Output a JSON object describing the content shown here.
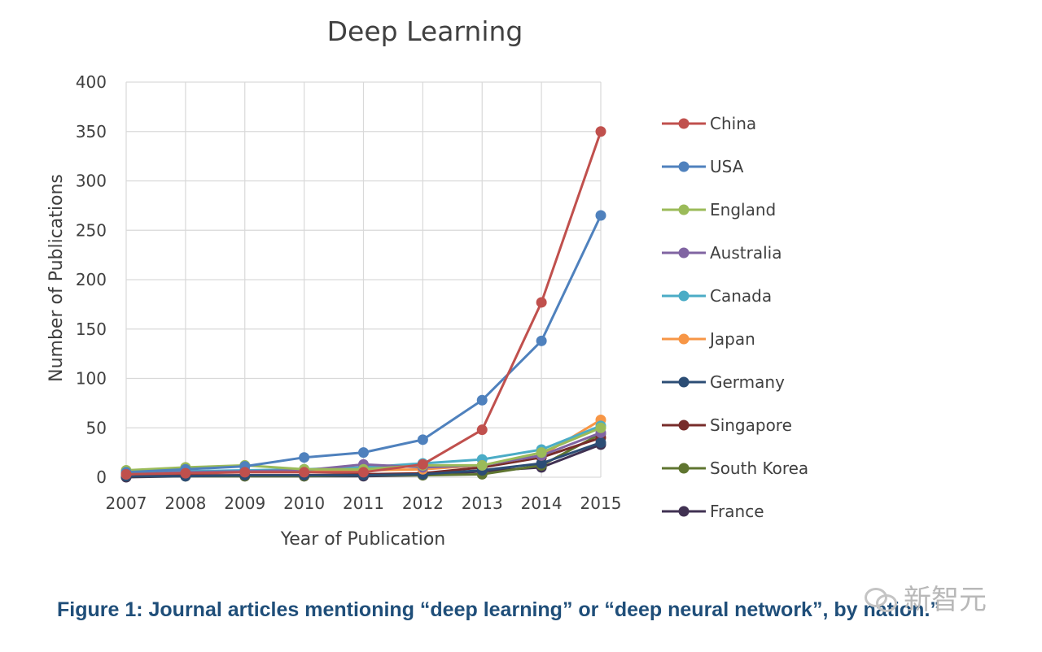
{
  "chart_data": {
    "type": "line",
    "title": "Deep Learning",
    "xlabel": "Year of Publication",
    "ylabel": "Number of Publications",
    "categories": [
      "2007",
      "2008",
      "2009",
      "2010",
      "2011",
      "2012",
      "2013",
      "2014",
      "2015"
    ],
    "ylim": [
      0,
      400
    ],
    "yticks": [
      "0",
      "50",
      "100",
      "150",
      "200",
      "250",
      "300",
      "350",
      "400"
    ],
    "grid": true,
    "legend_position": "right",
    "series": [
      {
        "name": "China",
        "color": "#c0504d",
        "values": [
          3,
          4,
          5,
          5,
          5,
          13,
          48,
          177,
          350
        ]
      },
      {
        "name": "USA",
        "color": "#4f81bd",
        "values": [
          5,
          8,
          11,
          20,
          25,
          38,
          78,
          138,
          265
        ]
      },
      {
        "name": "England",
        "color": "#9bbb59",
        "values": [
          7,
          10,
          12,
          8,
          8,
          12,
          12,
          25,
          50
        ]
      },
      {
        "name": "Australia",
        "color": "#8064a2",
        "values": [
          3,
          5,
          6,
          7,
          13,
          10,
          12,
          22,
          45
        ]
      },
      {
        "name": "Canada",
        "color": "#4bacc6",
        "values": [
          4,
          6,
          7,
          8,
          10,
          14,
          18,
          28,
          52
        ]
      },
      {
        "name": "Japan",
        "color": "#f79646",
        "values": [
          3,
          5,
          6,
          6,
          7,
          8,
          12,
          22,
          58
        ]
      },
      {
        "name": "Germany",
        "color": "#2c4d75",
        "values": [
          1,
          1,
          2,
          2,
          2,
          3,
          7,
          14,
          35
        ]
      },
      {
        "name": "Singapore",
        "color": "#772c2a",
        "values": [
          1,
          2,
          2,
          2,
          3,
          4,
          10,
          20,
          40
        ]
      },
      {
        "name": "South Korea",
        "color": "#5f7530",
        "values": [
          1,
          1,
          1,
          1,
          2,
          2,
          3,
          12,
          44
        ]
      },
      {
        "name": "France",
        "color": "#403152",
        "values": [
          0,
          1,
          1,
          1,
          1,
          2,
          6,
          10,
          33
        ]
      }
    ]
  },
  "caption": "Figure 1: Journal articles mentioning “deep learning” or “deep neural network”, by nation.”",
  "watermark": "新智元"
}
